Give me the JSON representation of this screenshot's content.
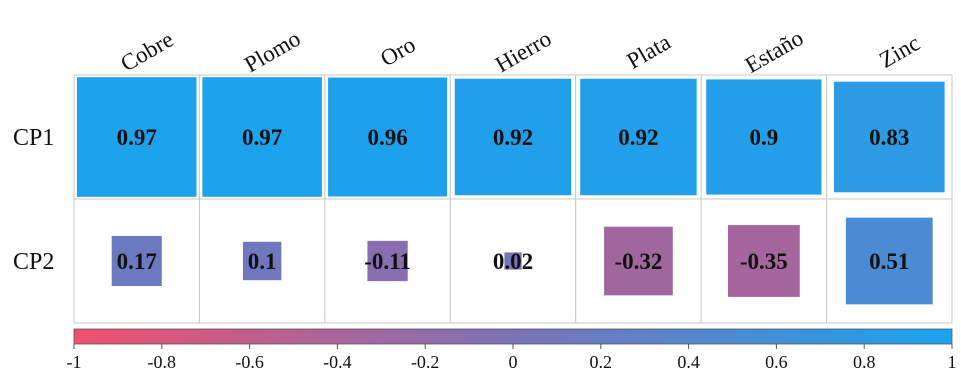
{
  "chart_data": {
    "type": "heatmap",
    "rows": [
      "CP1",
      "CP2"
    ],
    "columns": [
      "Cobre",
      "Plomo",
      "Oro",
      "Hierro",
      "Plata",
      "Estaño",
      "Zinc"
    ],
    "values": [
      [
        0.97,
        0.97,
        0.96,
        0.92,
        0.92,
        0.9,
        0.83
      ],
      [
        0.17,
        0.1,
        -0.11,
        0.02,
        -0.32,
        -0.35,
        0.51
      ]
    ],
    "value_labels": [
      [
        "0.97",
        "0.97",
        "0.96",
        "0.92",
        "0.92",
        "0.9",
        "0.83"
      ],
      [
        "0.17",
        "0.1",
        "-0.11",
        "0.02",
        "-0.32",
        "-0.35",
        "0.51"
      ]
    ],
    "colorbar": {
      "range": [
        -1,
        1
      ],
      "ticks": [
        -1,
        -0.8,
        -0.6,
        -0.4,
        -0.2,
        0,
        0.2,
        0.4,
        0.6,
        0.8,
        1
      ],
      "tick_labels": [
        "-1",
        "-0.8",
        "-0.6",
        "-0.4",
        "-0.2",
        "0",
        "0.2",
        "0.4",
        "0.6",
        "0.8",
        "1"
      ],
      "colors": {
        "negative": "#f0506e",
        "zero": "#7b72b6",
        "positive": "#1aa3ee"
      }
    },
    "encoding": "square size and color both proportional to value"
  }
}
